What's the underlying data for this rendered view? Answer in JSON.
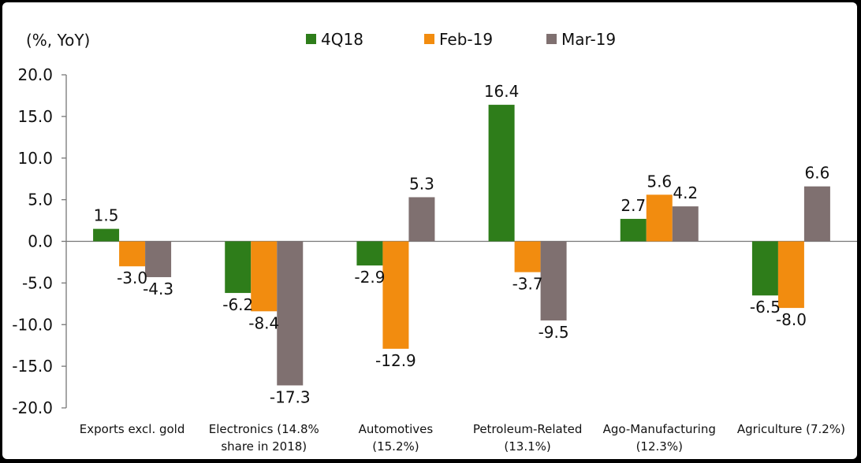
{
  "chart_data": {
    "type": "bar",
    "unit_label": "(%, YoY)",
    "title": "",
    "xlabel": "",
    "ylabel": "",
    "ylim": [
      -20,
      20
    ],
    "yticks": [
      "20.0",
      "15.0",
      "10.0",
      "5.0",
      "0.0",
      "-5.0",
      "-10.0",
      "-15.0",
      "-20.0"
    ],
    "ytick_values": [
      20,
      15,
      10,
      5,
      0,
      -5,
      -10,
      -15,
      -20
    ],
    "grid": false,
    "legend": "top",
    "categories": [
      [
        "Exports excl. gold"
      ],
      [
        "Electronics (14.8%",
        "share in 2018)"
      ],
      [
        "Automotives",
        "(15.2%)"
      ],
      [
        "Petroleum-Related",
        "(13.1%)"
      ],
      [
        "Ago-Manufacturing",
        "(12.3%)"
      ],
      [
        "Agriculture (7.2%)"
      ]
    ],
    "series": [
      {
        "name": "4Q18",
        "color": "#2e7d1a",
        "values": [
          1.5,
          -6.2,
          -2.9,
          16.4,
          2.7,
          -6.5
        ],
        "labels": [
          "1.5",
          "-6.2",
          "-2.9",
          "16.4",
          "2.7",
          "-6.5"
        ]
      },
      {
        "name": "Feb-19",
        "color": "#f28c0f",
        "values": [
          -3.0,
          -8.4,
          -12.9,
          -3.7,
          5.6,
          -8.0
        ],
        "labels": [
          "-3.0",
          "-8.4",
          "-12.9",
          "-3.7",
          "5.6",
          "-8.0"
        ]
      },
      {
        "name": "Mar-19",
        "color": "#7f7070",
        "values": [
          -4.3,
          -17.3,
          5.3,
          -9.5,
          4.2,
          6.6
        ],
        "labels": [
          "-4.3",
          "-17.3",
          "5.3",
          "-9.5",
          "4.2",
          "6.6"
        ]
      }
    ]
  }
}
